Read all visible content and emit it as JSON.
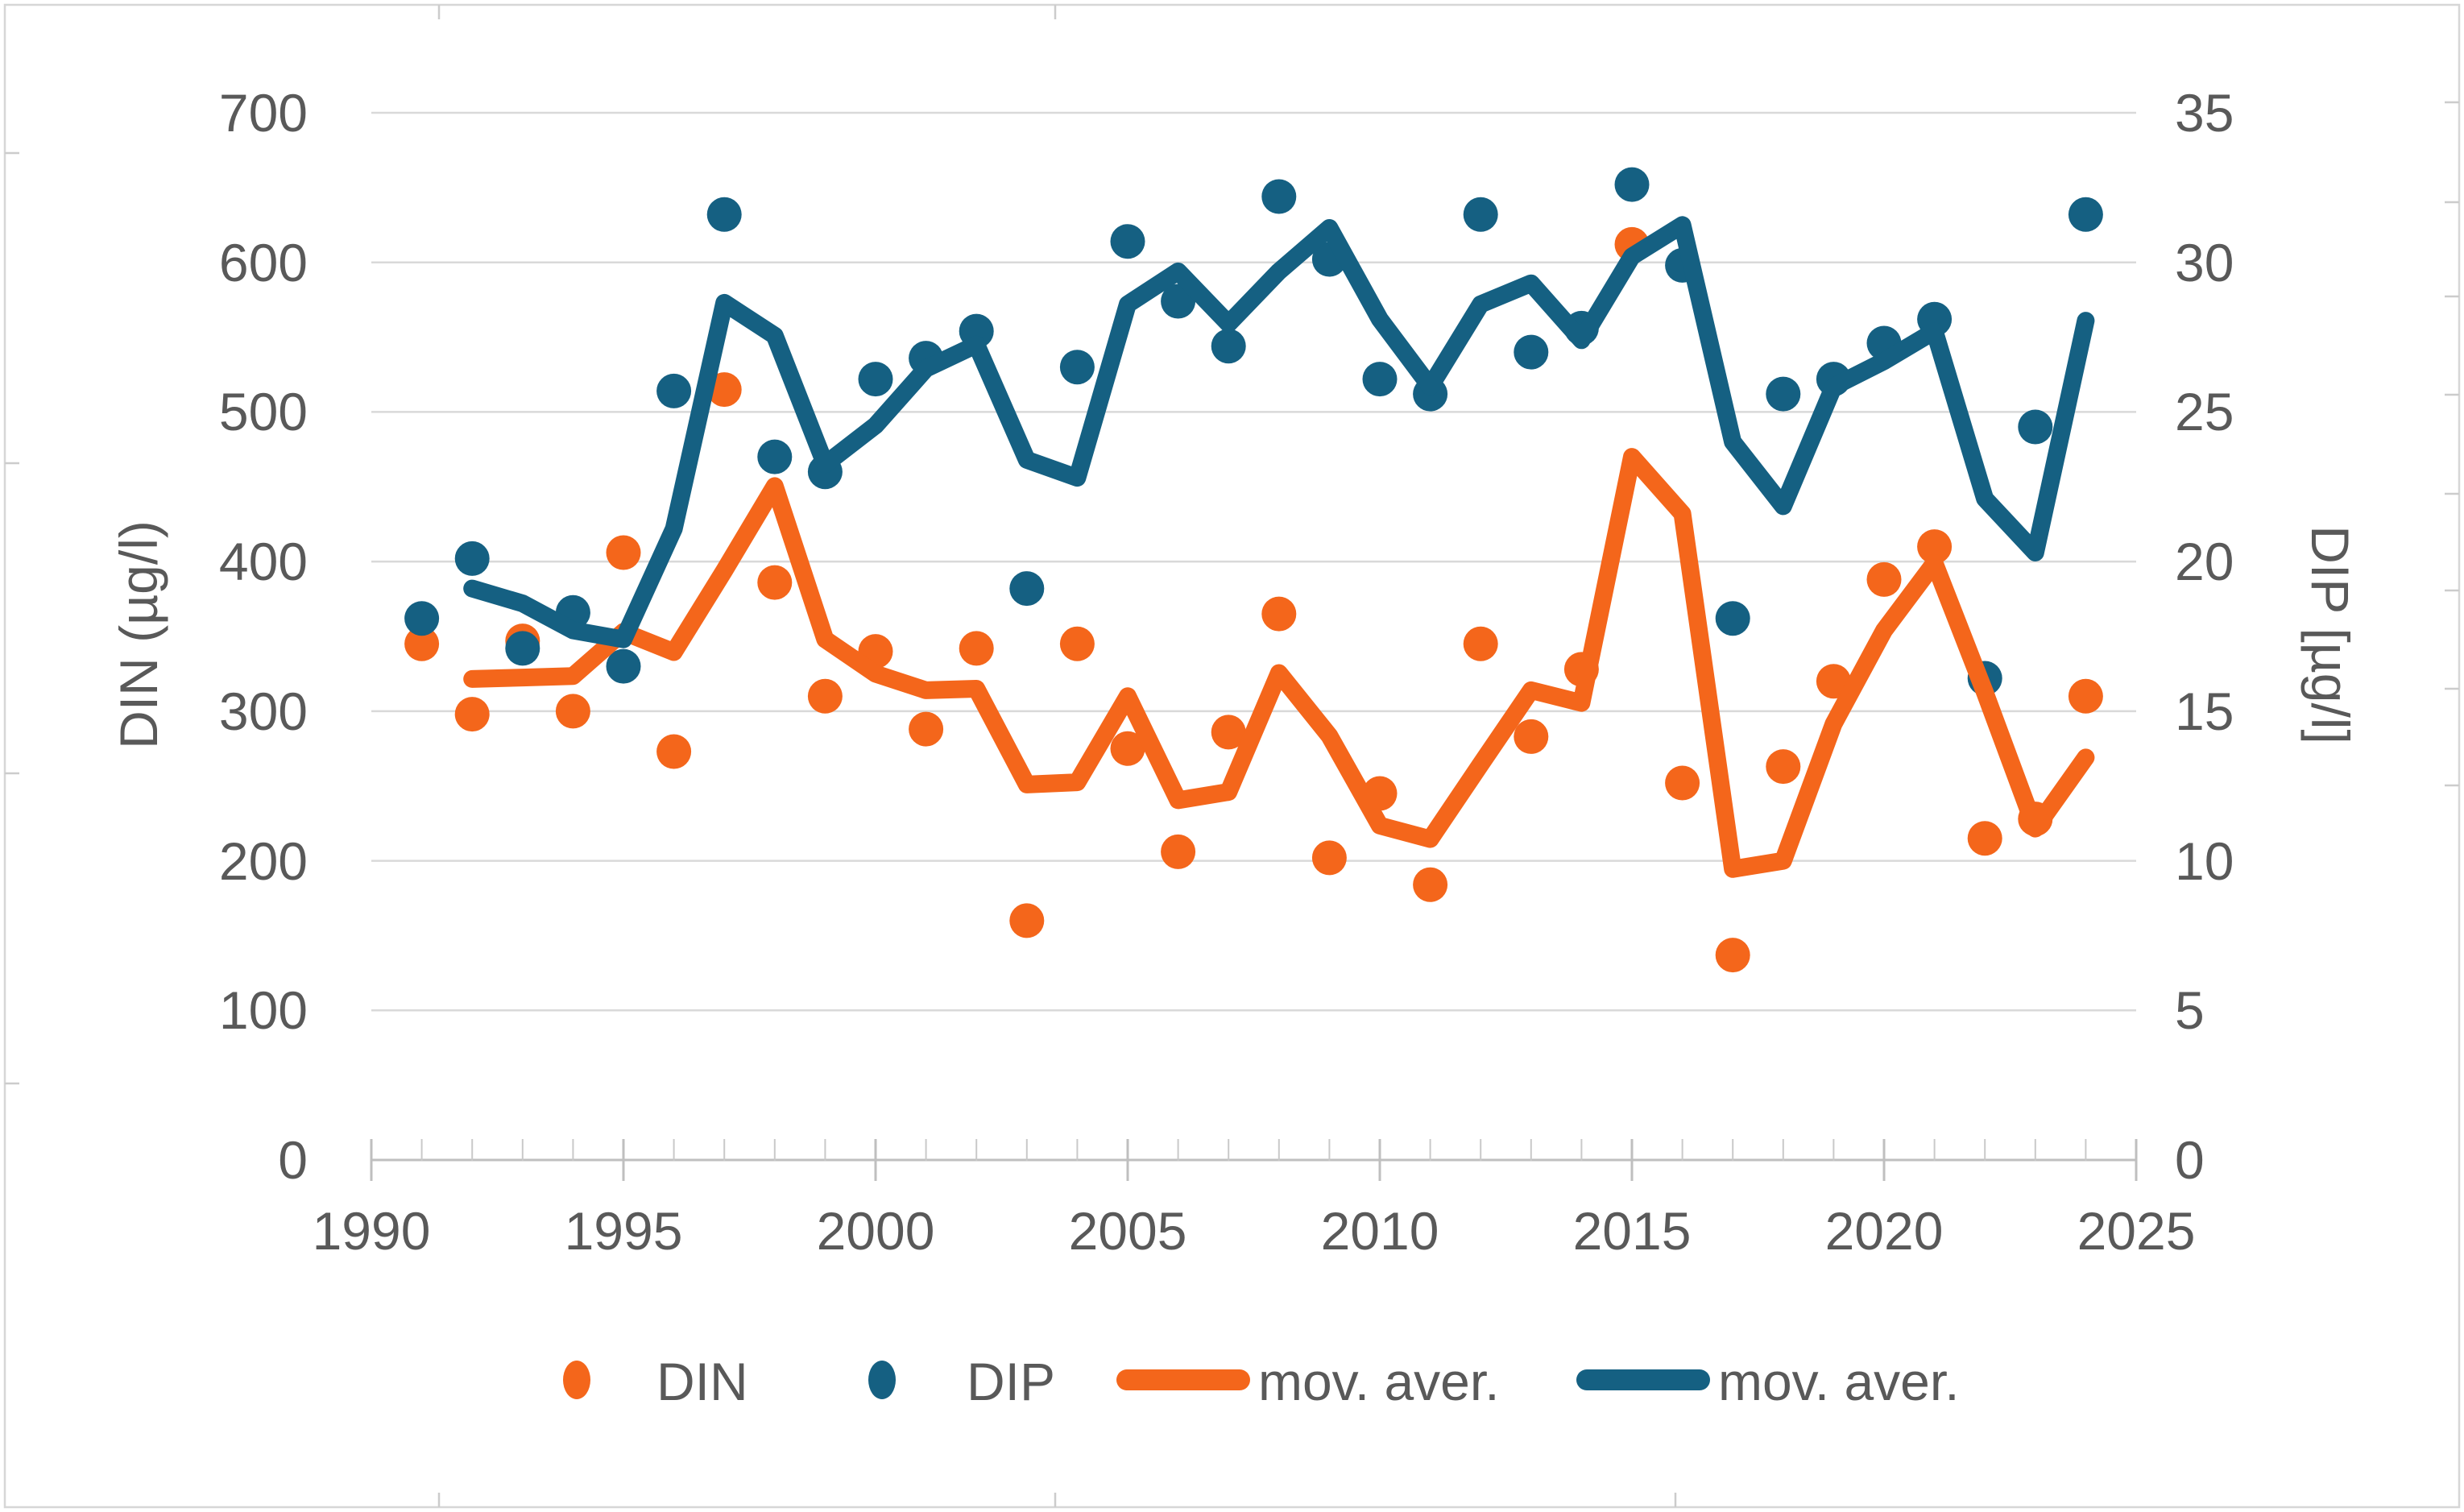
{
  "chart_data": {
    "type": "scatter",
    "title": "",
    "x_years": [
      1991,
      1992,
      1993,
      1994,
      1995,
      1996,
      1997,
      1998,
      1999,
      2000,
      2001,
      2002,
      2003,
      2004,
      2005,
      2006,
      2007,
      2008,
      2009,
      2010,
      2011,
      2012,
      2013,
      2014,
      2015,
      2016,
      2017,
      2018,
      2019,
      2020,
      2021,
      2022,
      2023,
      2024
    ],
    "series": [
      {
        "name": "DIN",
        "kind": "points",
        "axis": "left",
        "color": "#F4661B",
        "values": [
          345,
          298,
          347,
          300,
          406,
          273,
          515,
          386,
          310,
          340,
          288,
          342,
          160,
          345,
          275,
          206,
          286,
          365,
          202,
          245,
          184,
          345,
          283,
          328,
          612,
          252,
          137,
          263,
          320,
          388,
          410,
          215,
          228,
          310
        ]
      },
      {
        "name": "DIP",
        "kind": "points",
        "axis": "right",
        "color": "#156082",
        "values": [
          18.1,
          20.1,
          17.1,
          18.3,
          16.5,
          25.7,
          31.6,
          23.5,
          23.0,
          26.1,
          26.8,
          27.7,
          19.1,
          26.5,
          30.7,
          28.7,
          27.2,
          32.2,
          30.1,
          26.1,
          25.6,
          31.6,
          27.0,
          27.8,
          32.6,
          29.9,
          18.1,
          25.6,
          26.1,
          27.3,
          28.1,
          16.1,
          24.5,
          31.6
        ]
      },
      {
        "name": "mov. aver.",
        "kind": "line",
        "source": "DIN",
        "window": 2,
        "axis": "left",
        "color": "#F4661B"
      },
      {
        "name": "mov. aver.",
        "kind": "line",
        "source": "DIP",
        "window": 2,
        "axis": "right",
        "color": "#156082"
      }
    ],
    "axes": {
      "x": {
        "min": 1990,
        "max": 2025,
        "major_step": 5,
        "minor_step": 1,
        "tick_labels": [
          "1990",
          "1995",
          "2000",
          "2005",
          "2010",
          "2015",
          "2020",
          "2025"
        ]
      },
      "left": {
        "title": "DIN (µg/l)",
        "min": 0,
        "max": 700,
        "step": 100,
        "tick_labels": [
          "700",
          "600",
          "500",
          "400",
          "300",
          "200",
          "100",
          "0"
        ]
      },
      "right": {
        "title": "DIP [µg/l]",
        "min": 0,
        "max": 35,
        "step": 5,
        "tick_labels": [
          "35",
          "30",
          "25",
          "20",
          "15",
          "10",
          "5",
          "0"
        ]
      }
    },
    "legend": {
      "position": "bottom",
      "items": [
        {
          "label": "DIN",
          "marker": "dot",
          "color": "#F4661B"
        },
        {
          "label": "DIP",
          "marker": "dot",
          "color": "#156082"
        },
        {
          "label": "mov. aver.",
          "marker": "line",
          "color": "#F4661B"
        },
        {
          "label": "mov. aver.",
          "marker": "line",
          "color": "#156082"
        }
      ]
    },
    "grid": {
      "show": true,
      "color": "#D9D9D9"
    }
  },
  "style": {
    "text_color": "#595959",
    "axis_line_color": "#BFBFBF",
    "minor_tick_color": "#C9C9C9",
    "border_color": "#D6D6D6",
    "background": "#FFFFFF"
  }
}
